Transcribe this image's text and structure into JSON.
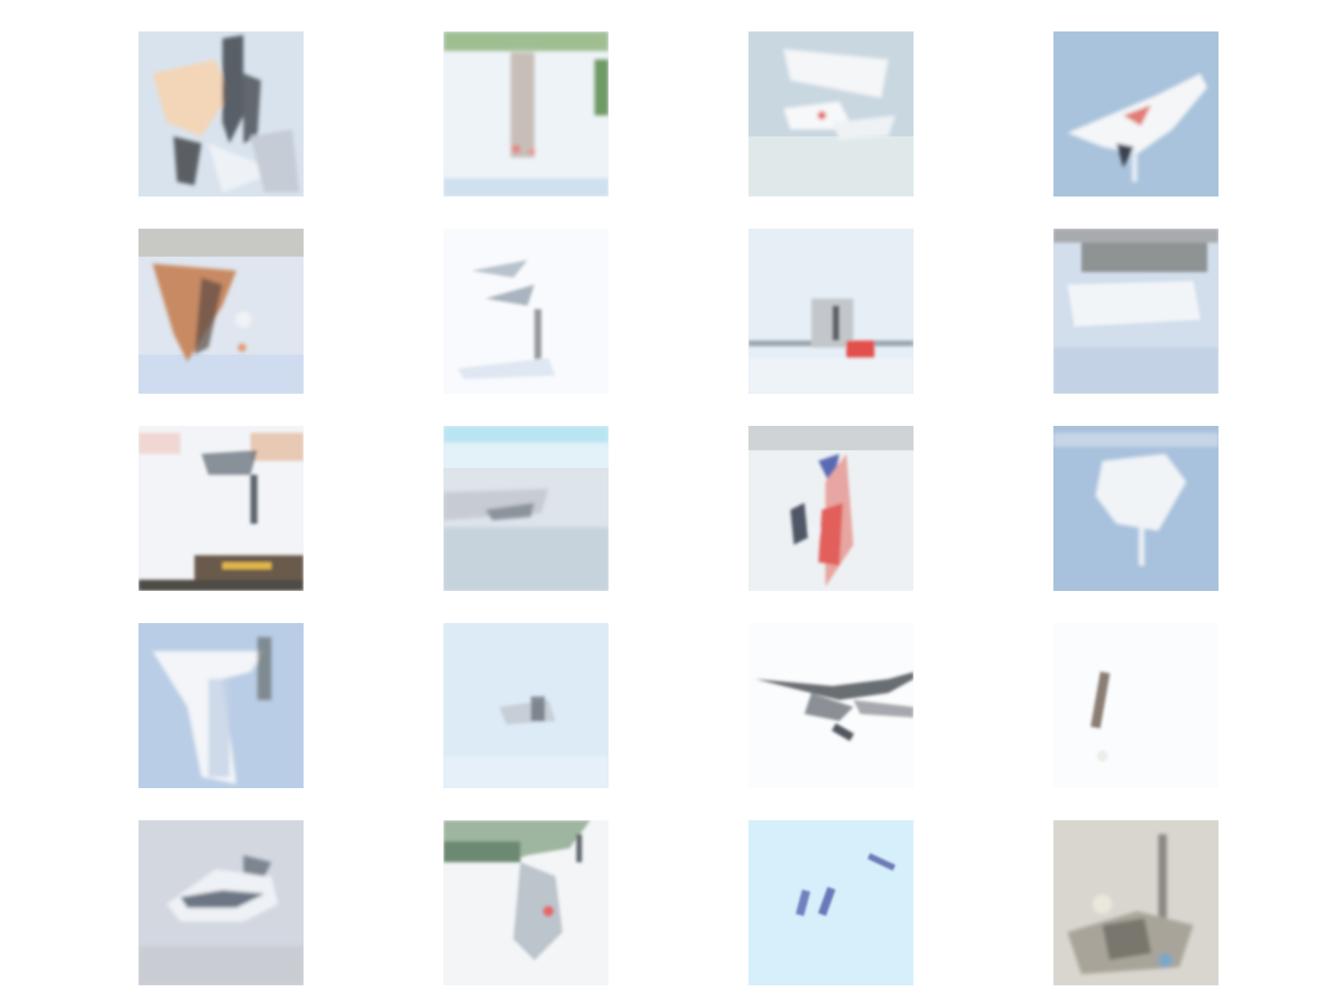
{
  "figure": {
    "layout": "grid-5x4",
    "tiles": [
      {
        "subject": "blurry-sample",
        "bg": "#d9e3ee"
      },
      {
        "subject": "blurry-sample",
        "bg": "#eef3f8"
      },
      {
        "subject": "blurry-sample",
        "bg": "#c9d7e0"
      },
      {
        "subject": "blurry-sample",
        "bg": "#a9c3dc"
      },
      {
        "subject": "blurry-sample",
        "bg": "#dfe6ef"
      },
      {
        "subject": "blurry-sample",
        "bg": "#f8fafd"
      },
      {
        "subject": "blurry-sample",
        "bg": "#e6eef6"
      },
      {
        "subject": "blurry-sample",
        "bg": "#d2deec"
      },
      {
        "subject": "blurry-sample",
        "bg": "#f2f4f7"
      },
      {
        "subject": "blurry-sample",
        "bg": "#dde4ea"
      },
      {
        "subject": "blurry-sample",
        "bg": "#eef1f4"
      },
      {
        "subject": "blurry-sample",
        "bg": "#a8c1dc"
      },
      {
        "subject": "blurry-sample",
        "bg": "#b9cde6"
      },
      {
        "subject": "blurry-sample",
        "bg": "#dcebf6"
      },
      {
        "subject": "blurry-sample",
        "bg": "#fbfcfd"
      },
      {
        "subject": "blurry-sample",
        "bg": "#fbfcfd"
      },
      {
        "subject": "blurry-sample",
        "bg": "#d2d7e0"
      },
      {
        "subject": "blurry-sample",
        "bg": "#f3f5f7"
      },
      {
        "subject": "blurry-sample",
        "bg": "#d6f0fb"
      },
      {
        "subject": "blurry-sample",
        "bg": "#d9d6cf"
      }
    ]
  }
}
